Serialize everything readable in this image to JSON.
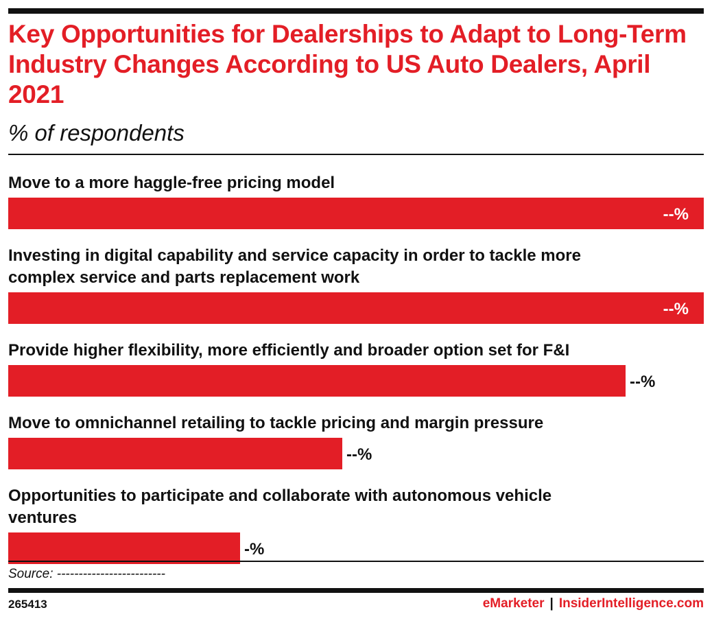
{
  "header": {
    "title": "Key Opportunities for Dealerships to Adapt to Long-Term Industry Changes According to US Auto Dealers, April 2021",
    "subtitle": "% of respondents"
  },
  "chart_data": {
    "type": "bar",
    "orientation": "horizontal",
    "title": "Key Opportunities for Dealerships to Adapt to Long-Term Industry Changes According to US Auto Dealers, April 2021",
    "subtitle": "% of respondents",
    "unit": "%",
    "categories": [
      "Move to a more haggle-free pricing model",
      "Investing in digital capability and service capacity in order to tackle more complex service and parts replacement work",
      "Provide higher flexibility, more efficiently and broader option set for F&I",
      "Move to omnichannel retailing to tackle pricing and margin pressure",
      "Opportunities to participate and collaborate with autonomous vehicle ventures"
    ],
    "value_labels": [
      "--%",
      "--%",
      "--%",
      "--%",
      "-%"
    ],
    "relative_values": [
      1.0,
      1.0,
      0.888,
      0.48,
      0.333
    ],
    "grid": false,
    "legend": "none",
    "bar_color": "#e31e26"
  },
  "footer": {
    "source": "Source: -------------------------",
    "chart_id": "265413",
    "brand_left": "eMarketer",
    "brand_separator": "|",
    "brand_right": "InsiderIntelligence.com"
  }
}
